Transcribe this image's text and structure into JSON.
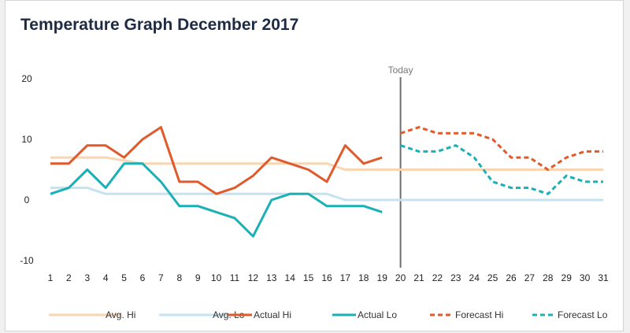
{
  "chart_data": {
    "type": "line",
    "title": "Temperature Graph December 2017",
    "xlabel": "",
    "ylabel": "",
    "x": [
      1,
      2,
      3,
      4,
      5,
      6,
      7,
      8,
      9,
      10,
      11,
      12,
      13,
      14,
      15,
      16,
      17,
      18,
      19,
      20,
      21,
      22,
      23,
      24,
      25,
      26,
      27,
      28,
      29,
      30,
      31
    ],
    "ylim": [
      -10,
      20
    ],
    "yticks": [
      -10,
      0,
      10,
      20
    ],
    "marker": {
      "label": "Today",
      "x": 20
    },
    "grid": false,
    "legend_position": "bottom",
    "series": [
      {
        "name": "Avg. Hi",
        "color": "#f8d5b3",
        "dash": false,
        "x": [
          1,
          2,
          3,
          4,
          5,
          6,
          7,
          8,
          9,
          10,
          11,
          12,
          13,
          14,
          15,
          16,
          17,
          18,
          19,
          20,
          21,
          22,
          23,
          24,
          25,
          26,
          27,
          28,
          29,
          30,
          31
        ],
        "values": [
          7,
          7,
          7,
          7,
          6.5,
          6,
          6,
          6,
          6,
          6,
          6,
          6,
          6,
          6,
          6,
          6,
          5,
          5,
          5,
          5,
          5,
          5,
          5,
          5,
          5,
          5,
          5,
          5,
          5,
          5,
          5
        ]
      },
      {
        "name": "Avg. Lo",
        "color": "#c5e3ef",
        "dash": false,
        "x": [
          1,
          2,
          3,
          4,
          5,
          6,
          7,
          8,
          9,
          10,
          11,
          12,
          13,
          14,
          15,
          16,
          17,
          18,
          19,
          20,
          21,
          22,
          23,
          24,
          25,
          26,
          27,
          28,
          29,
          30,
          31
        ],
        "values": [
          2,
          2,
          2,
          1,
          1,
          1,
          1,
          1,
          1,
          1,
          1,
          1,
          1,
          1,
          1,
          1,
          0,
          0,
          0,
          0,
          0,
          0,
          0,
          0,
          0,
          0,
          0,
          0,
          0,
          0,
          0
        ]
      },
      {
        "name": "Actual Hi",
        "color": "#e05a2b",
        "dash": false,
        "x": [
          1,
          2,
          3,
          4,
          5,
          6,
          7,
          8,
          9,
          10,
          11,
          12,
          13,
          14,
          15,
          16,
          17,
          18,
          19
        ],
        "values": [
          6,
          6,
          9,
          9,
          7,
          10,
          12,
          3,
          3,
          1,
          2,
          4,
          7,
          6,
          5,
          3,
          9,
          6,
          7
        ]
      },
      {
        "name": "Actual Lo",
        "color": "#1ab0b6",
        "dash": false,
        "x": [
          1,
          2,
          3,
          4,
          5,
          6,
          7,
          8,
          9,
          10,
          11,
          12,
          13,
          14,
          15,
          16,
          17,
          18,
          19
        ],
        "values": [
          1,
          2,
          5,
          2,
          6,
          6,
          3,
          -1,
          -1,
          -2,
          -3,
          -6,
          0,
          1,
          1,
          -1,
          -1,
          -1,
          -2
        ]
      },
      {
        "name": "Forecast Hi",
        "color": "#e05a2b",
        "dash": true,
        "x": [
          20,
          21,
          22,
          23,
          24,
          25,
          26,
          27,
          28,
          29,
          30,
          31
        ],
        "values": [
          11,
          12,
          11,
          11,
          11,
          10,
          7,
          7,
          5,
          7,
          8,
          8
        ]
      },
      {
        "name": "Forecast Lo",
        "color": "#1ab0b6",
        "dash": true,
        "x": [
          20,
          21,
          22,
          23,
          24,
          25,
          26,
          27,
          28,
          29,
          30,
          31
        ],
        "values": [
          9,
          8,
          8,
          9,
          7,
          3,
          2,
          2,
          1,
          4,
          3,
          3
        ]
      }
    ]
  }
}
